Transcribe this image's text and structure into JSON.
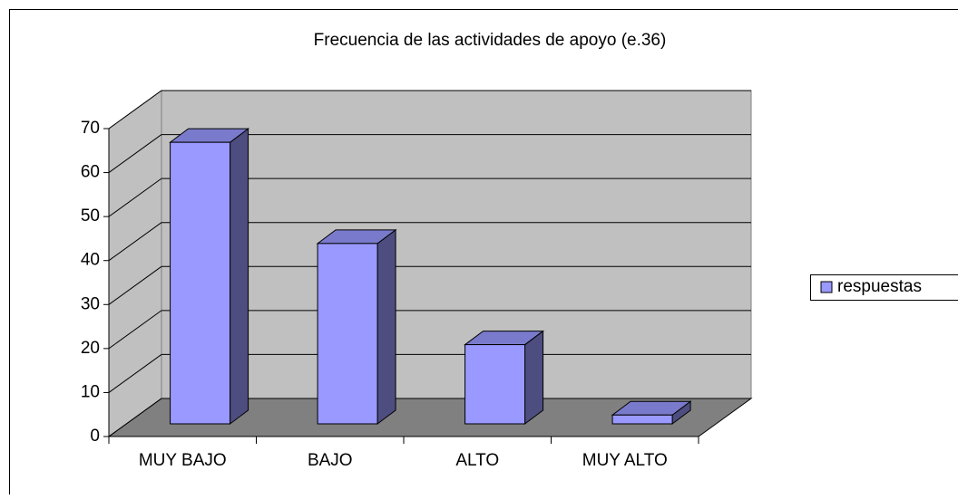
{
  "chart_data": {
    "type": "bar",
    "title": "Frecuencia de las actividades de apoyo (e.36)",
    "categories": [
      "MUY BAJO",
      "BAJO",
      "ALTO",
      "MUY ALTO"
    ],
    "series": [
      {
        "name": "respuestas",
        "color": "#9999ff",
        "values": [
          64,
          41,
          18,
          2
        ]
      }
    ],
    "ylim": [
      0,
      70
    ],
    "yticks": [
      0,
      10,
      20,
      30,
      40,
      50,
      60,
      70
    ],
    "grid": true,
    "legend": "right"
  }
}
